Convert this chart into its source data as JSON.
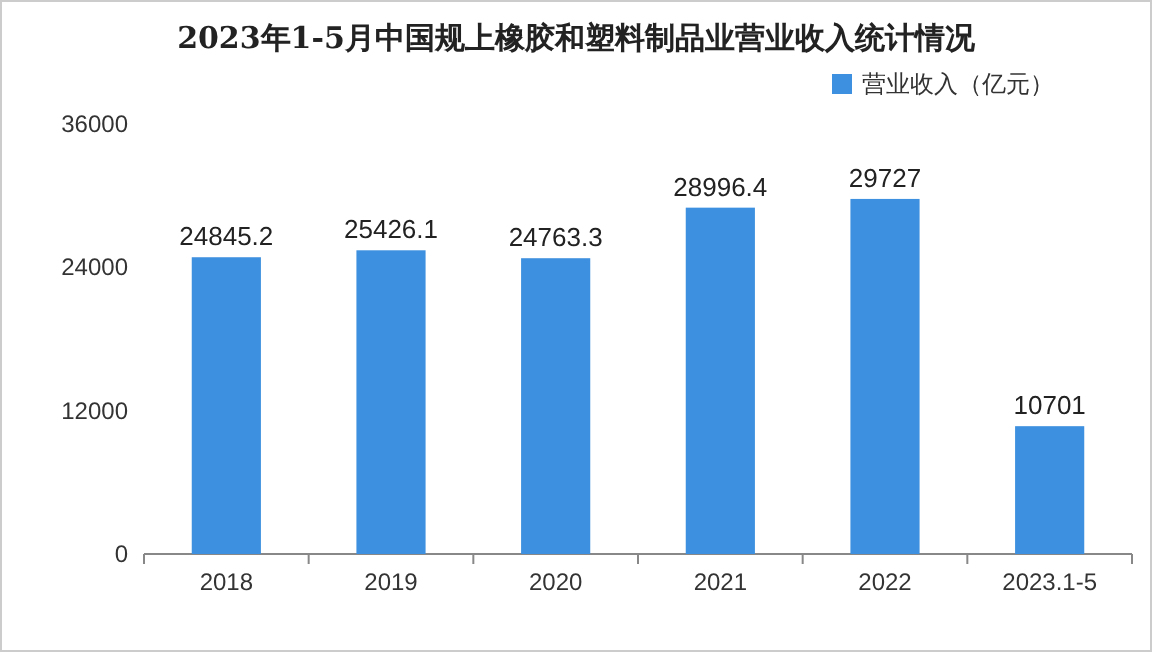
{
  "chart_data": {
    "type": "bar",
    "title": "2023年1-5月中国规上橡胶和塑料制品业营业收入统计情况",
    "categories": [
      "2018",
      "2019",
      "2020",
      "2021",
      "2022",
      "2023.1-5"
    ],
    "series": [
      {
        "name": "营业收入（亿元）",
        "color": "#3d8fdf",
        "values": [
          24845.2,
          25426.1,
          24763.3,
          28996.4,
          29727,
          10701
        ]
      }
    ],
    "ylim": [
      0,
      36000
    ],
    "yticks": [
      0,
      12000,
      24000,
      36000
    ],
    "legend": "top right",
    "data_labels": true
  }
}
